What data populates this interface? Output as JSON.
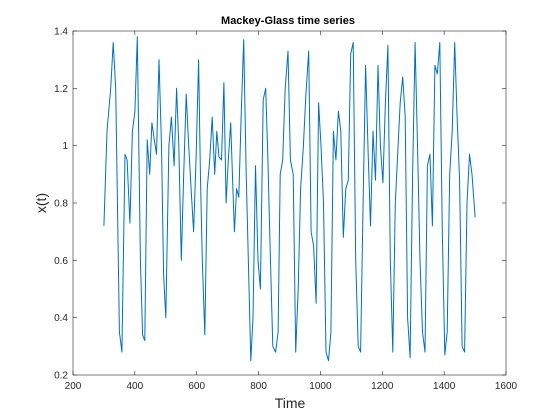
{
  "chart_data": {
    "type": "line",
    "title": "Mackey-Glass time series",
    "xlabel": "Time",
    "ylabel": "x(t)",
    "xlim": [
      200,
      1600
    ],
    "ylim": [
      0.2,
      1.4
    ],
    "xticks": [
      200,
      400,
      600,
      800,
      1000,
      1200,
      1400,
      1600
    ],
    "yticks": [
      0.2,
      0.4,
      0.6,
      0.8,
      1,
      1.2,
      1.4
    ],
    "xtick_labels": [
      "200",
      "400",
      "600",
      "800",
      "1000",
      "1200",
      "1400",
      "1600"
    ],
    "ytick_labels": [
      "0.2",
      "0.4",
      "0.6",
      "0.8",
      "1",
      "1.2",
      "1.4"
    ],
    "grid": false,
    "series": [
      {
        "color": "#0072BD",
        "x": [
          300,
          310,
          322,
          330,
          338,
          350,
          358,
          368,
          375,
          384,
          392,
          400,
          408,
          418,
          425,
          432,
          440,
          448,
          455,
          463,
          470,
          478,
          486,
          493,
          500,
          510,
          518,
          527,
          535,
          542,
          550,
          558,
          566,
          574,
          582,
          590,
          598,
          606,
          612,
          618,
          626,
          634,
          642,
          650,
          658,
          665,
          672,
          680,
          688,
          695,
          702,
          710,
          716,
          722,
          729,
          736,
          744,
          752,
          760,
          768,
          775,
          782,
          790,
          798,
          806,
          815,
          823,
          830,
          838,
          846,
          855,
          863,
          870,
          878,
          886,
          895,
          903,
          912,
          920,
          928,
          936,
          945,
          953,
          962,
          970,
          978,
          986,
          994,
          1002,
          1010,
          1018,
          1026,
          1034,
          1042,
          1050,
          1058,
          1066,
          1074,
          1082,
          1090,
          1098,
          1106,
          1114,
          1122,
          1130,
          1138,
          1146,
          1154,
          1162,
          1170,
          1178,
          1186,
          1194,
          1202,
          1210,
          1218,
          1226,
          1234,
          1242,
          1250,
          1258,
          1266,
          1274,
          1282,
          1290,
          1298,
          1306,
          1314,
          1322,
          1330,
          1338,
          1346,
          1354,
          1362,
          1370,
          1378,
          1386,
          1394,
          1402,
          1410,
          1418,
          1426,
          1434,
          1442,
          1450,
          1458,
          1466,
          1474,
          1482,
          1490,
          1500
        ],
        "y": [
          0.72,
          1.05,
          1.2,
          1.36,
          1.2,
          0.35,
          0.28,
          0.97,
          0.95,
          0.73,
          1.05,
          1.12,
          1.38,
          0.6,
          0.34,
          0.32,
          1.02,
          0.9,
          1.08,
          1.02,
          0.97,
          1.3,
          1.0,
          0.55,
          0.4,
          1.0,
          1.1,
          0.93,
          1.2,
          1.0,
          0.6,
          0.9,
          1.18,
          1.0,
          0.85,
          0.7,
          0.96,
          1.3,
          0.9,
          0.6,
          0.34,
          0.85,
          0.95,
          1.1,
          0.9,
          1.05,
          0.96,
          0.95,
          1.22,
          0.8,
          0.95,
          1.08,
          0.88,
          0.7,
          0.85,
          0.82,
          1.12,
          1.37,
          0.9,
          0.55,
          0.25,
          0.4,
          0.93,
          0.6,
          0.5,
          1.16,
          1.2,
          0.95,
          0.62,
          0.3,
          0.28,
          0.35,
          0.9,
          0.95,
          1.2,
          1.33,
          0.95,
          0.9,
          0.28,
          0.5,
          0.85,
          1.0,
          1.18,
          1.33,
          0.7,
          0.65,
          0.45,
          1.15,
          1.0,
          0.8,
          0.28,
          0.25,
          0.35,
          1.05,
          0.95,
          1.12,
          1.05,
          0.68,
          0.85,
          0.88,
          1.32,
          1.36,
          0.6,
          0.3,
          0.28,
          0.8,
          1.28,
          0.98,
          0.72,
          1.05,
          0.88,
          1.28,
          1.0,
          0.87,
          1.15,
          1.35,
          0.6,
          0.28,
          0.8,
          0.98,
          1.15,
          1.24,
          1.1,
          0.4,
          0.26,
          0.9,
          1.36,
          1.0,
          0.6,
          0.35,
          0.28,
          0.93,
          0.97,
          0.72,
          1.28,
          1.25,
          1.36,
          0.7,
          0.27,
          0.35,
          0.9,
          1.05,
          1.36,
          1.1,
          0.88,
          0.3,
          0.28,
          0.8,
          0.97,
          0.9,
          0.75
        ]
      }
    ]
  }
}
